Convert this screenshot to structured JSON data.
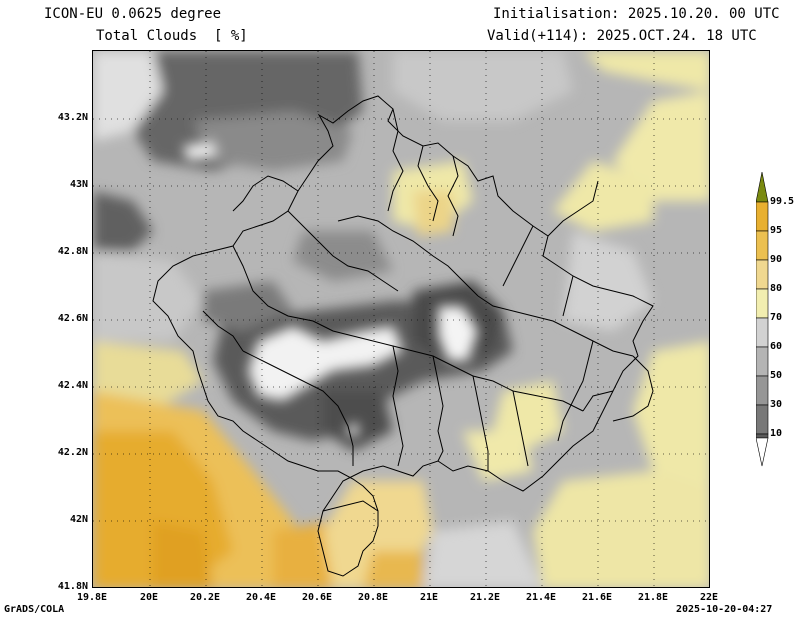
{
  "header": {
    "model": "ICON-EU 0.0625 degree",
    "variable": "Total Clouds  [ %]",
    "init": "Initialisation: 2025.10.20. 00 UTC",
    "valid": "Valid(+114): 2025.OCT.24. 18 UTC"
  },
  "axes": {
    "lat_labels": [
      "43.2N",
      "43N",
      "42.8N",
      "42.6N",
      "42.4N",
      "42.2N",
      "42N",
      "41.8N"
    ],
    "lon_labels": [
      "19.8E",
      "20E",
      "20.2E",
      "20.4E",
      "20.6E",
      "20.8E",
      "21E",
      "21.2E",
      "21.4E",
      "21.6E",
      "21.8E",
      "22E"
    ]
  },
  "legend": {
    "labels": [
      "99.5",
      "95",
      "90",
      "80",
      "70",
      "60",
      "50",
      "30",
      "10"
    ],
    "colors": [
      "#7a8a10",
      "#e8b030",
      "#ecc050",
      "#f0d890",
      "#f2eeb0",
      "#d2d2d2",
      "#b4b4b4",
      "#969696",
      "#787878",
      "#5a5a5a",
      "#ffffff"
    ]
  },
  "footer": {
    "left": "GrADS/COLA",
    "right": "2025-10-20-04:27"
  }
}
